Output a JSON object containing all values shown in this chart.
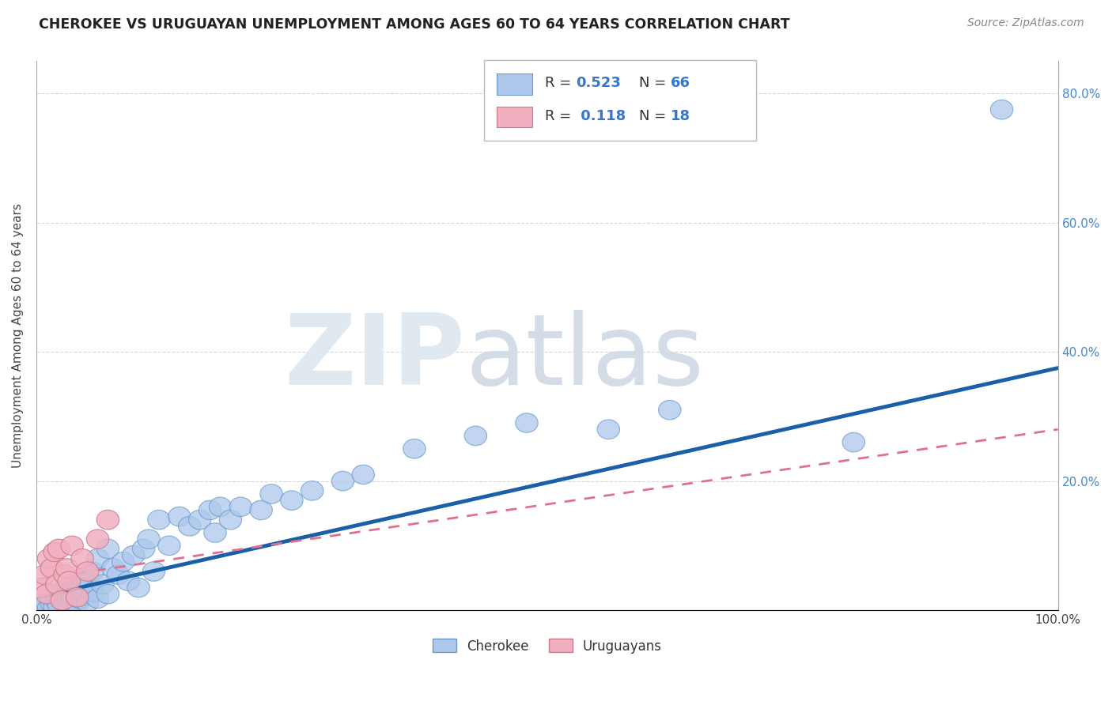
{
  "title": "CHEROKEE VS URUGUAYAN UNEMPLOYMENT AMONG AGES 60 TO 64 YEARS CORRELATION CHART",
  "source": "Source: ZipAtlas.com",
  "ylabel": "Unemployment Among Ages 60 to 64 years",
  "xlim": [
    0.0,
    1.0
  ],
  "ylim": [
    0.0,
    0.85
  ],
  "xticks": [
    0.0,
    0.2,
    0.4,
    0.6,
    0.8,
    1.0
  ],
  "xticklabels": [
    "0.0%",
    "",
    "",
    "",
    "",
    "100.0%"
  ],
  "yticks": [
    0.0,
    0.2,
    0.4,
    0.6,
    0.8
  ],
  "yticklabels": [
    "",
    "",
    "",
    "",
    ""
  ],
  "ytick_right": [
    0.2,
    0.4,
    0.6,
    0.8
  ],
  "ytick_right_labels": [
    "20.0%",
    "40.0%",
    "60.0%",
    "80.0%"
  ],
  "cherokee_color": "#adc8eb",
  "cherokee_edge_color": "#6699cc",
  "uruguayan_color": "#f0b0c0",
  "uruguayan_edge_color": "#cc7788",
  "cherokee_line_color": "#1a5fa8",
  "uruguayan_line_color": "#e07090",
  "grid_color": "#d0d8e0",
  "cherokee_x": [
    0.005,
    0.008,
    0.01,
    0.012,
    0.015,
    0.015,
    0.018,
    0.02,
    0.02,
    0.022,
    0.025,
    0.025,
    0.028,
    0.03,
    0.03,
    0.032,
    0.035,
    0.035,
    0.038,
    0.04,
    0.04,
    0.042,
    0.045,
    0.045,
    0.048,
    0.05,
    0.05,
    0.055,
    0.055,
    0.06,
    0.06,
    0.065,
    0.07,
    0.07,
    0.075,
    0.08,
    0.085,
    0.09,
    0.095,
    0.1,
    0.105,
    0.11,
    0.115,
    0.12,
    0.13,
    0.14,
    0.15,
    0.16,
    0.17,
    0.175,
    0.18,
    0.19,
    0.2,
    0.22,
    0.23,
    0.25,
    0.27,
    0.3,
    0.32,
    0.37,
    0.43,
    0.48,
    0.56,
    0.62,
    0.8,
    0.945
  ],
  "cherokee_y": [
    0.005,
    0.008,
    0.012,
    0.003,
    0.01,
    0.02,
    0.005,
    0.015,
    0.025,
    0.008,
    0.018,
    0.03,
    0.012,
    0.022,
    0.035,
    0.008,
    0.025,
    0.015,
    0.03,
    0.01,
    0.04,
    0.018,
    0.035,
    0.05,
    0.022,
    0.012,
    0.045,
    0.028,
    0.06,
    0.018,
    0.08,
    0.04,
    0.095,
    0.025,
    0.065,
    0.055,
    0.075,
    0.045,
    0.085,
    0.035,
    0.095,
    0.11,
    0.06,
    0.14,
    0.1,
    0.145,
    0.13,
    0.14,
    0.155,
    0.12,
    0.16,
    0.14,
    0.16,
    0.155,
    0.18,
    0.17,
    0.185,
    0.2,
    0.21,
    0.25,
    0.27,
    0.29,
    0.28,
    0.31,
    0.26,
    0.775
  ],
  "uruguayan_x": [
    0.005,
    0.008,
    0.01,
    0.012,
    0.015,
    0.018,
    0.02,
    0.022,
    0.025,
    0.028,
    0.03,
    0.032,
    0.035,
    0.04,
    0.045,
    0.05,
    0.06,
    0.07
  ],
  "uruguayan_y": [
    0.035,
    0.055,
    0.025,
    0.08,
    0.065,
    0.09,
    0.04,
    0.095,
    0.015,
    0.055,
    0.065,
    0.045,
    0.1,
    0.02,
    0.08,
    0.06,
    0.11,
    0.14
  ],
  "cherokee_line_x0": 0.0,
  "cherokee_line_y0": 0.02,
  "cherokee_line_x1": 1.0,
  "cherokee_line_y1": 0.375,
  "uruguayan_line_x0": 0.0,
  "uruguayan_line_y0": 0.048,
  "uruguayan_line_x1": 1.0,
  "uruguayan_line_y1": 0.28
}
